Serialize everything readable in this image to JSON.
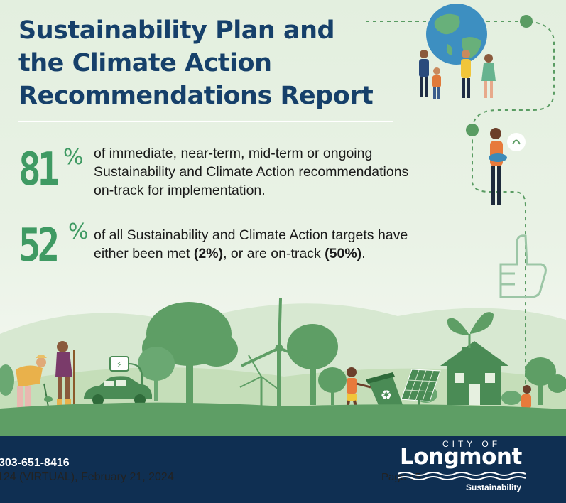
{
  "title": {
    "lines": [
      "Sustainability Plan and",
      "the Climate Action",
      "Recommendations Report"
    ]
  },
  "stats": [
    {
      "number": "81",
      "percent_sign": "%",
      "lines": [
        "of immediate, near-term, mid-term or ongoing",
        "Sustainability and Climate Action recommendations",
        "on-track for implementation."
      ]
    },
    {
      "number": "52",
      "percent_sign": "%",
      "line1": "of all Sustainability and Climate Action targets have",
      "line2_pre": "either been met ",
      "line2_met": "(2%)",
      "line2_mid": ", or are on-track ",
      "line2_track": "(50%)",
      "line2_end": "."
    }
  ],
  "footer": {
    "phone": "303-651-8416",
    "meeting": "124 (VIRTUAL), February 21, 2024",
    "page": "Page 15",
    "logo_city": "CITY OF",
    "logo_name": "Longmont",
    "logo_sub": "Sustainability"
  },
  "icons": [
    "globe-icon",
    "people-group-icon",
    "lightbulb-icon",
    "thumbs-up-icon",
    "wind-turbine-icon",
    "ev-car-icon",
    "charging-station-icon",
    "solar-panel-icon",
    "recycling-bin-icon",
    "house-icon",
    "sprout-icon",
    "bicycle-icon"
  ],
  "colors": {
    "title": "#16406a",
    "accent_green": "#3f9a63",
    "scenery_green": "#5e9e65",
    "footer_navy": "#0f2f52"
  }
}
